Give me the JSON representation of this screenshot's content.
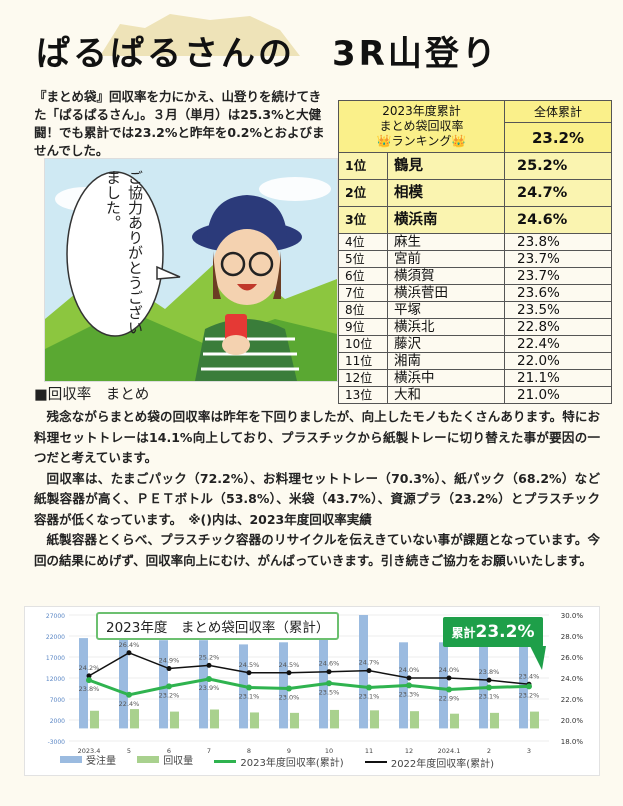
{
  "title": "ぱるぱるさんの　3R山登り",
  "intro": "『まとめ袋』回収率を力にかえ、山登りを続けてきた「ぱるぱるさん」。３月（単月）は25.3%と大健闘！でも累計では23.2%と昨年を0.2%とおよびませんでした。",
  "speech": "ご協力ありがとうございました。",
  "ranking": {
    "header": [
      "2023年度累計",
      "まとめ袋回収率",
      "👑ランキング👑"
    ],
    "total_label": "全体累計",
    "total_value": "23.2%",
    "rows": [
      {
        "rank": "1位",
        "name": "鶴見",
        "value": "25.2%"
      },
      {
        "rank": "2位",
        "name": "相模",
        "value": "24.7%"
      },
      {
        "rank": "3位",
        "name": "横浜南",
        "value": "24.6%"
      },
      {
        "rank": "4位",
        "name": "麻生",
        "value": "23.8%"
      },
      {
        "rank": "5位",
        "name": "宮前",
        "value": "23.7%"
      },
      {
        "rank": "6位",
        "name": "横須賀",
        "value": "23.7%"
      },
      {
        "rank": "7位",
        "name": "横浜菅田",
        "value": "23.6%"
      },
      {
        "rank": "8位",
        "name": "平塚",
        "value": "23.5%"
      },
      {
        "rank": "9位",
        "name": "横浜北",
        "value": "22.8%"
      },
      {
        "rank": "10位",
        "name": "藤沢",
        "value": "22.4%"
      },
      {
        "rank": "11位",
        "name": "湘南",
        "value": "22.0%"
      },
      {
        "rank": "12位",
        "name": "横浜中",
        "value": "21.1%"
      },
      {
        "rank": "13位",
        "name": "大和",
        "value": "21.0%"
      }
    ]
  },
  "section_title": "■回収率　まとめ",
  "paragraphs": [
    "残念ながらまとめ袋の回収率は昨年を下回りましたが、向上したモノもたくさんあります。特にお料理セットトレーは14.1%向上しており、プラスチックから紙製トレーに切り替えた事が要因の一つだと考えています。",
    "回収率は、たまごパック（72.2%）、お料理セットトレー（70.3%）、紙パック（68.2%）など紙製容器が高く、ＰＥＴボトル（53.8%）、米袋（43.7%）、資源プラ（23.2%）とプラスチック容器が低くなっています。　※()内は、2023年度回収率実績",
    "紙製容器とくらべ、プラスチック容器のリサイクルを伝えきていない事が課題となっています。今回の結果にめげず、回収率向上にむけ、がんばっていきます。引き続きご協力をお願いいたします。"
  ],
  "badge": {
    "small": "累計",
    "big": "23.2%"
  },
  "colors": {
    "ranking_bg": "#faf08a",
    "bar_orders": "#9bbbe0",
    "bar_collected": "#a9d18e",
    "line_2023": "#2fb34f",
    "line_2022": "#111111",
    "badge": "#1e9f49"
  },
  "chart_data": {
    "type": "bar",
    "title": "2023年度　まとめ袋回収率（累計）",
    "categories": [
      "2023.4",
      "5",
      "6",
      "7",
      "8",
      "9",
      "10",
      "11",
      "12",
      "2024.1",
      "2",
      "3"
    ],
    "series": [
      {
        "name": "受注量",
        "kind": "bar",
        "axis": "left",
        "values": [
          21500,
          27000,
          21000,
          21000,
          20000,
          20500,
          21500,
          27000,
          20500,
          20500,
          21000,
          21000
        ]
      },
      {
        "name": "回収量",
        "kind": "bar",
        "axis": "left",
        "values": [
          4200,
          4600,
          4000,
          4500,
          3800,
          3700,
          4400,
          4300,
          4100,
          3500,
          3700,
          4000
        ]
      },
      {
        "name": "2023年度回収率(累計)",
        "kind": "line",
        "axis": "right",
        "values": [
          23.8,
          22.4,
          23.2,
          23.9,
          23.1,
          23.0,
          23.5,
          23.1,
          23.3,
          22.9,
          23.1,
          23.2
        ],
        "labels": [
          "23.8%",
          "22.4%",
          "23.2%",
          "23.9%",
          "23.1%",
          "23.0%",
          "23.5%",
          "23.1%",
          "23.3%",
          "22.9%",
          "23.1%",
          "23.2%"
        ]
      },
      {
        "name": "2022年度回収率(累計)",
        "kind": "line",
        "axis": "right",
        "values": [
          24.2,
          26.4,
          24.9,
          25.2,
          24.5,
          24.5,
          24.6,
          24.7,
          24.0,
          24.0,
          23.8,
          23.4
        ],
        "labels": [
          "24.2%",
          "26.4%",
          "24.9%",
          "25.2%",
          "24.5%",
          "24.5%",
          "24.6%",
          "24.7%",
          "24.0%",
          "24.0%",
          "23.8%",
          "23.4%"
        ]
      }
    ],
    "left_axis": {
      "ticks": [
        "27000",
        "22000",
        "17000",
        "12000",
        "7000",
        "2000",
        "-3000"
      ],
      "range": [
        -3000,
        27000
      ]
    },
    "right_axis": {
      "ticks": [
        "30.0%",
        "28.0%",
        "26.0%",
        "24.0%",
        "22.0%",
        "20.0%",
        "18.0%"
      ],
      "range": [
        18,
        30
      ]
    },
    "legend_position": "bottom"
  }
}
